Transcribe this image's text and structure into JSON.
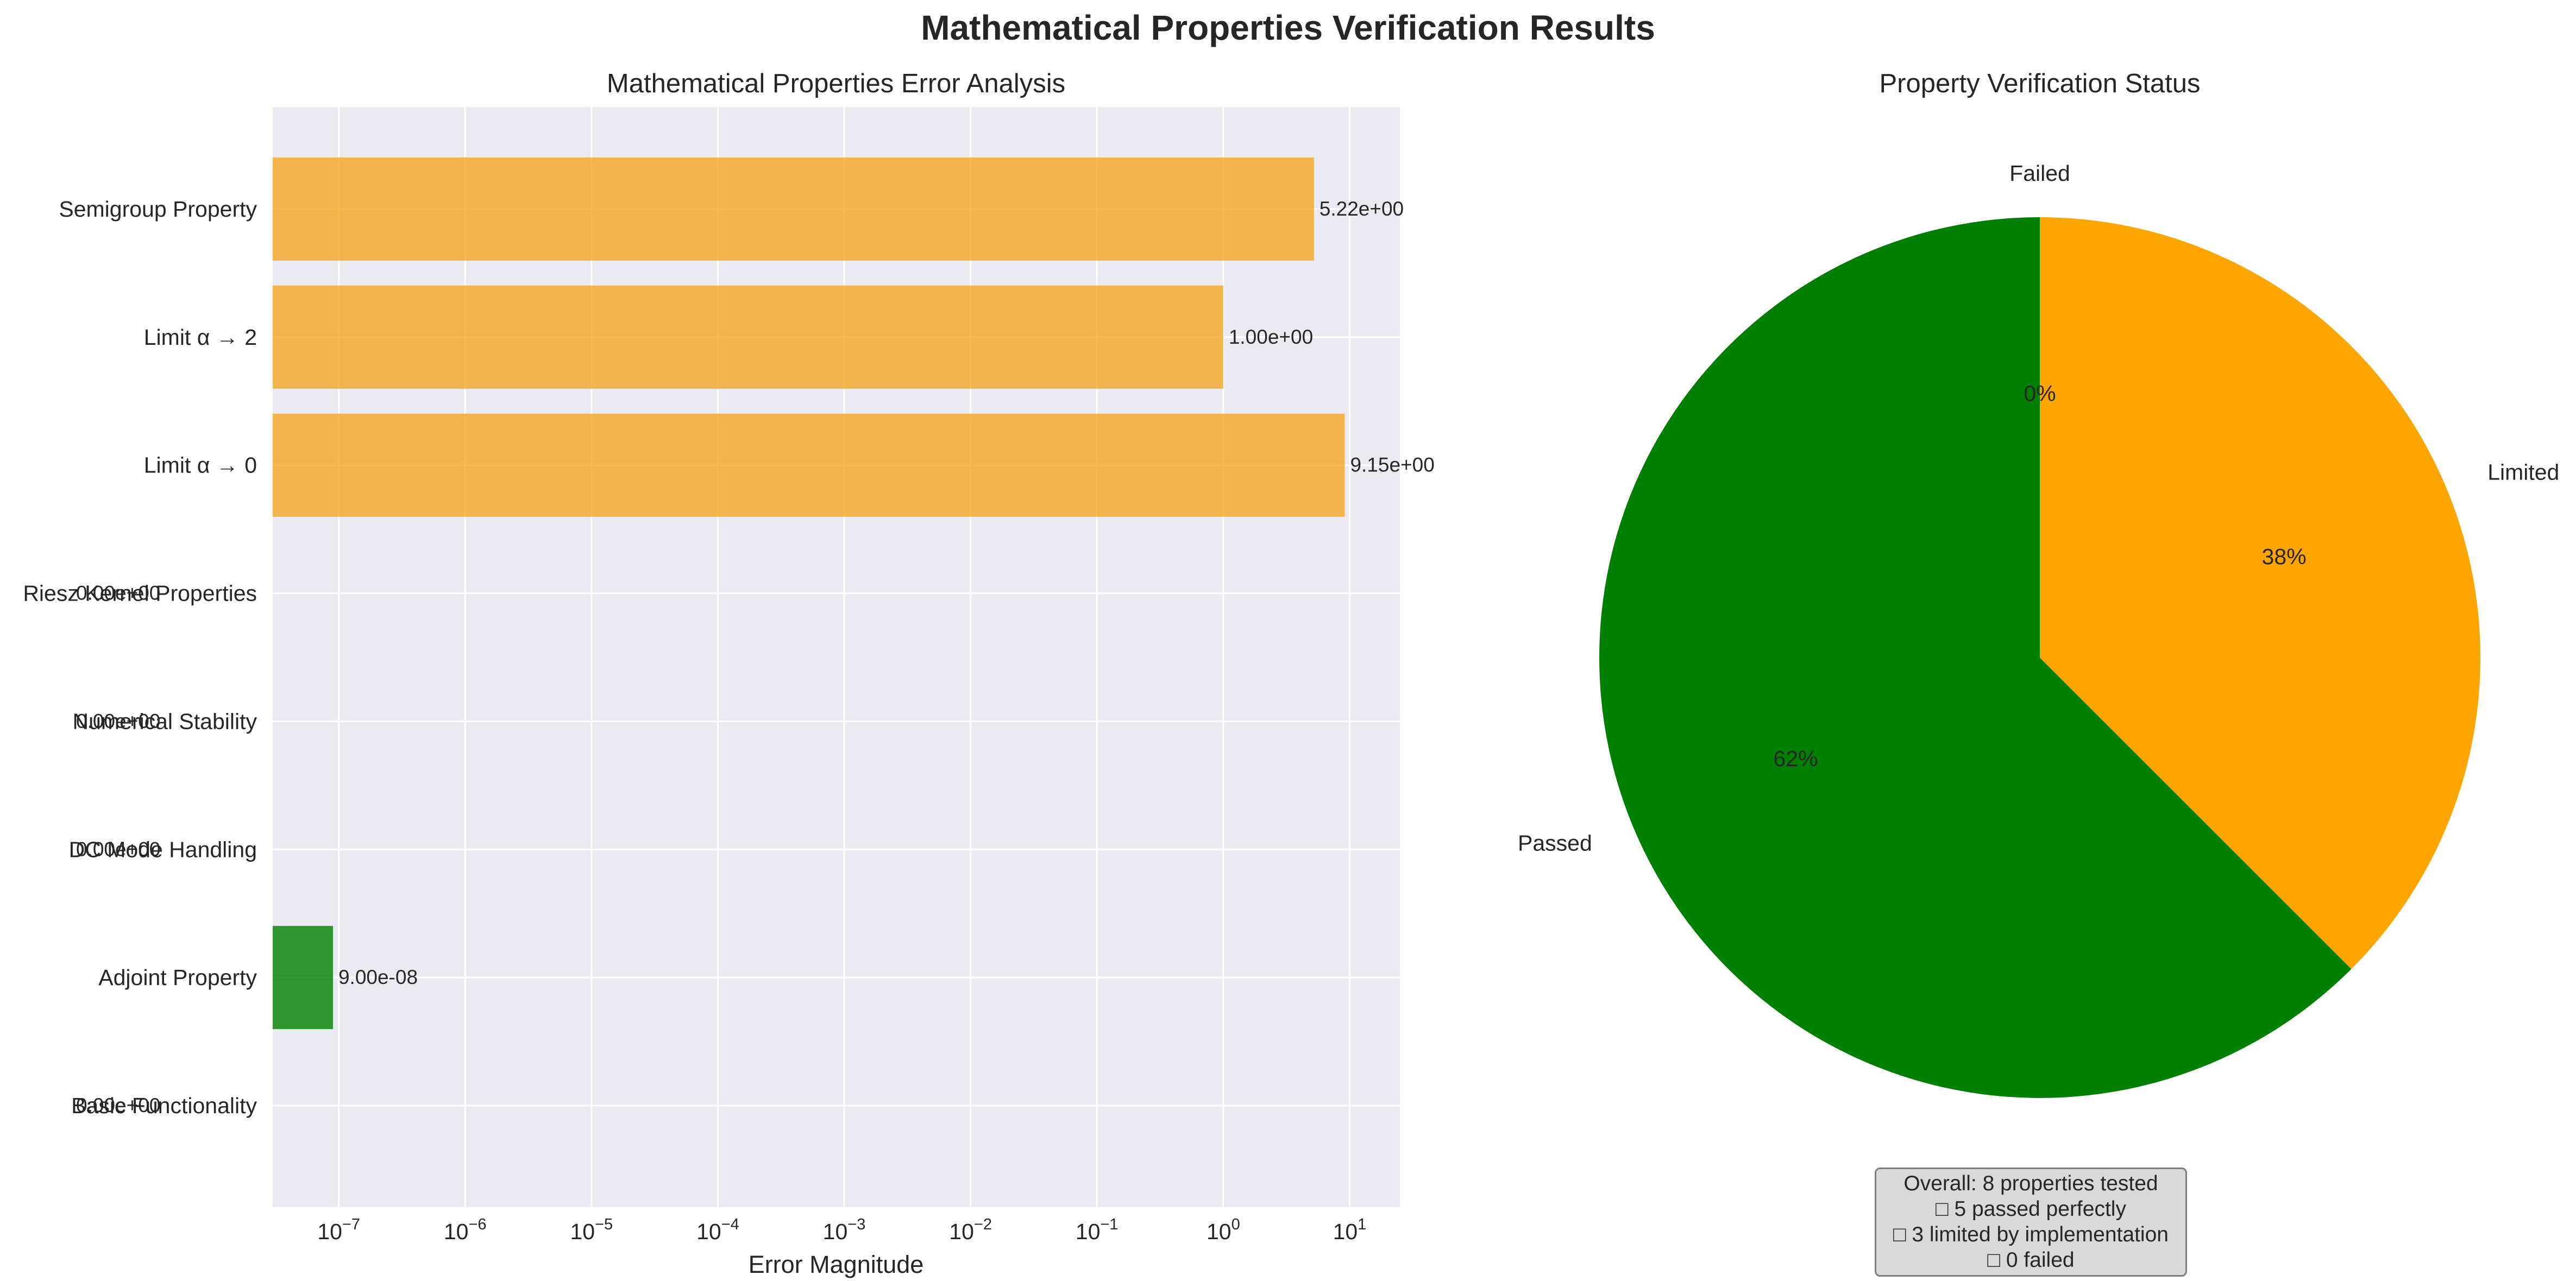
{
  "figure_title": "Mathematical Properties Verification Results",
  "chart_data": [
    {
      "type": "bar",
      "orientation": "horizontal",
      "title": "Mathematical Properties Error Analysis",
      "xlabel": "Error Magnitude",
      "ylabel": "",
      "xscale": "log",
      "xlim": [
        3e-08,
        25
      ],
      "grid": true,
      "categories": [
        "Semigroup Property",
        "Limit α → 2",
        "Limit α → 0",
        "Riesz Kernel Properties",
        "Numerical Stability",
        "DC Mode Handling",
        "Adjoint Property",
        "Basic Functionality"
      ],
      "values": [
        5.22,
        1.0,
        9.15,
        0,
        0,
        0,
        9e-08,
        0
      ],
      "value_labels": [
        "5.22e+00",
        "1.00e+00",
        "9.15e+00",
        "0.00e+00",
        "0.00e+00",
        "0.00e+00",
        "9.00e-08",
        "0.00e+00"
      ],
      "bar_colors": [
        "#f5a623",
        "#f5a623",
        "#f5a623",
        "#008000",
        "#008000",
        "#008000",
        "#008000",
        "#008000"
      ],
      "xticks": [
        {
          "value": 1e-07,
          "base": "10",
          "exp": "−7"
        },
        {
          "value": 1e-06,
          "base": "10",
          "exp": "−6"
        },
        {
          "value": 1e-05,
          "base": "10",
          "exp": "−5"
        },
        {
          "value": 0.0001,
          "base": "10",
          "exp": "−4"
        },
        {
          "value": 0.001,
          "base": "10",
          "exp": "−3"
        },
        {
          "value": 0.01,
          "base": "10",
          "exp": "−2"
        },
        {
          "value": 0.1,
          "base": "10",
          "exp": "−1"
        },
        {
          "value": 1,
          "base": "10",
          "exp": "0"
        },
        {
          "value": 10,
          "base": "10",
          "exp": "1"
        }
      ]
    },
    {
      "type": "pie",
      "title": "Property Verification Status",
      "labels": [
        "Passed",
        "Limited",
        "Failed"
      ],
      "values": [
        5,
        3,
        0
      ],
      "percent_labels": [
        "62%",
        "38%",
        "0%"
      ],
      "colors": [
        "#008000",
        "#ffa500",
        "#ff0000"
      ],
      "start_angle_deg": 90,
      "direction": "counterclockwise"
    }
  ],
  "summary": {
    "line1": "Overall: 8 properties tested",
    "line2": "□ 5 passed perfectly",
    "line3": "□ 3 limited by implementation",
    "line4": "□ 0 failed"
  }
}
